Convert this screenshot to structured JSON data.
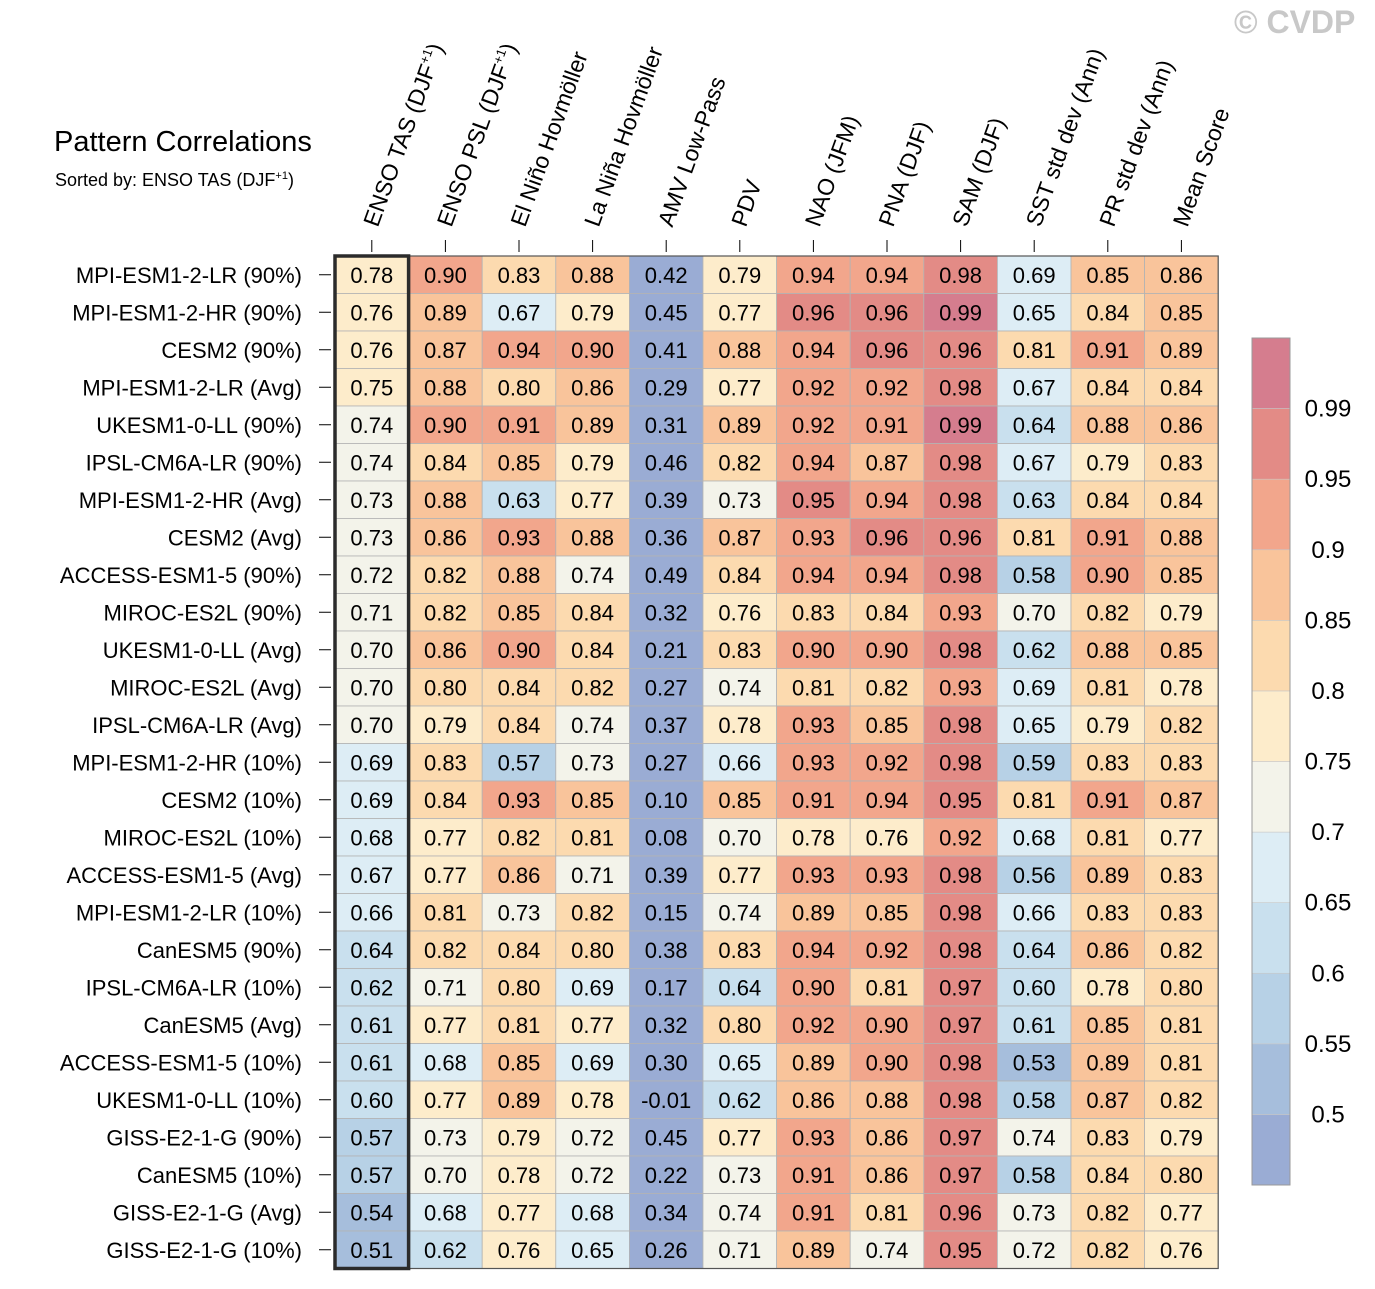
{
  "header": {
    "title": "Pattern Correlations",
    "subtitle_prefix": "Sorted by: ENSO TAS (DJF",
    "subtitle_sup": "+1",
    "subtitle_suffix": ")",
    "watermark": "© CVDP"
  },
  "chart_data": {
    "type": "heatmap",
    "columns": [
      {
        "label": "ENSO TAS (DJF",
        "sup": "+1",
        "suffix": ")"
      },
      {
        "label": "ENSO PSL (DJF",
        "sup": "+1",
        "suffix": ")"
      },
      {
        "label": "El Niño Hovmöller"
      },
      {
        "label": "La Niña Hovmöller"
      },
      {
        "label": "AMV Low-Pass"
      },
      {
        "label": "PDV"
      },
      {
        "label": "NAO (JFM)"
      },
      {
        "label": "PNA (DJF)"
      },
      {
        "label": "SAM (DJF)"
      },
      {
        "label": "SST std dev (Ann)"
      },
      {
        "label": "PR std dev (Ann)"
      },
      {
        "label": "Mean Score"
      }
    ],
    "sorted_column": 0,
    "rows": [
      {
        "label": "MPI-ESM1-2-LR (90%)",
        "values": [
          "0.78",
          "0.90",
          "0.83",
          "0.88",
          "0.42",
          "0.79",
          "0.94",
          "0.94",
          "0.98",
          "0.69",
          "0.85",
          "0.86"
        ]
      },
      {
        "label": "MPI-ESM1-2-HR (90%)",
        "values": [
          "0.76",
          "0.89",
          "0.67",
          "0.79",
          "0.45",
          "0.77",
          "0.96",
          "0.96",
          "0.99",
          "0.65",
          "0.84",
          "0.85"
        ]
      },
      {
        "label": "CESM2 (90%)",
        "values": [
          "0.76",
          "0.87",
          "0.94",
          "0.90",
          "0.41",
          "0.88",
          "0.94",
          "0.96",
          "0.96",
          "0.81",
          "0.91",
          "0.89"
        ]
      },
      {
        "label": "MPI-ESM1-2-LR (Avg)",
        "values": [
          "0.75",
          "0.88",
          "0.80",
          "0.86",
          "0.29",
          "0.77",
          "0.92",
          "0.92",
          "0.98",
          "0.67",
          "0.84",
          "0.84"
        ]
      },
      {
        "label": "UKESM1-0-LL (90%)",
        "values": [
          "0.74",
          "0.90",
          "0.91",
          "0.89",
          "0.31",
          "0.89",
          "0.92",
          "0.91",
          "0.99",
          "0.64",
          "0.88",
          "0.86"
        ]
      },
      {
        "label": "IPSL-CM6A-LR (90%)",
        "values": [
          "0.74",
          "0.84",
          "0.85",
          "0.79",
          "0.46",
          "0.82",
          "0.94",
          "0.87",
          "0.98",
          "0.67",
          "0.79",
          "0.83"
        ]
      },
      {
        "label": "MPI-ESM1-2-HR (Avg)",
        "values": [
          "0.73",
          "0.88",
          "0.63",
          "0.77",
          "0.39",
          "0.73",
          "0.95",
          "0.94",
          "0.98",
          "0.63",
          "0.84",
          "0.84"
        ]
      },
      {
        "label": "CESM2 (Avg)",
        "values": [
          "0.73",
          "0.86",
          "0.93",
          "0.88",
          "0.36",
          "0.87",
          "0.93",
          "0.96",
          "0.96",
          "0.81",
          "0.91",
          "0.88"
        ]
      },
      {
        "label": "ACCESS-ESM1-5 (90%)",
        "values": [
          "0.72",
          "0.82",
          "0.88",
          "0.74",
          "0.49",
          "0.84",
          "0.94",
          "0.94",
          "0.98",
          "0.58",
          "0.90",
          "0.85"
        ]
      },
      {
        "label": "MIROC-ES2L (90%)",
        "values": [
          "0.71",
          "0.82",
          "0.85",
          "0.84",
          "0.32",
          "0.76",
          "0.83",
          "0.84",
          "0.93",
          "0.70",
          "0.82",
          "0.79"
        ]
      },
      {
        "label": "UKESM1-0-LL (Avg)",
        "values": [
          "0.70",
          "0.86",
          "0.90",
          "0.84",
          "0.21",
          "0.83",
          "0.90",
          "0.90",
          "0.98",
          "0.62",
          "0.88",
          "0.85"
        ]
      },
      {
        "label": "MIROC-ES2L (Avg)",
        "values": [
          "0.70",
          "0.80",
          "0.84",
          "0.82",
          "0.27",
          "0.74",
          "0.81",
          "0.82",
          "0.93",
          "0.69",
          "0.81",
          "0.78"
        ]
      },
      {
        "label": "IPSL-CM6A-LR (Avg)",
        "values": [
          "0.70",
          "0.79",
          "0.84",
          "0.74",
          "0.37",
          "0.78",
          "0.93",
          "0.85",
          "0.98",
          "0.65",
          "0.79",
          "0.82"
        ]
      },
      {
        "label": "MPI-ESM1-2-HR (10%)",
        "values": [
          "0.69",
          "0.83",
          "0.57",
          "0.73",
          "0.27",
          "0.66",
          "0.93",
          "0.92",
          "0.98",
          "0.59",
          "0.83",
          "0.83"
        ]
      },
      {
        "label": "CESM2 (10%)",
        "values": [
          "0.69",
          "0.84",
          "0.93",
          "0.85",
          "0.10",
          "0.85",
          "0.91",
          "0.94",
          "0.95",
          "0.81",
          "0.91",
          "0.87"
        ]
      },
      {
        "label": "MIROC-ES2L (10%)",
        "values": [
          "0.68",
          "0.77",
          "0.82",
          "0.81",
          "0.08",
          "0.70",
          "0.78",
          "0.76",
          "0.92",
          "0.68",
          "0.81",
          "0.77"
        ]
      },
      {
        "label": "ACCESS-ESM1-5 (Avg)",
        "values": [
          "0.67",
          "0.77",
          "0.86",
          "0.71",
          "0.39",
          "0.77",
          "0.93",
          "0.93",
          "0.98",
          "0.56",
          "0.89",
          "0.83"
        ]
      },
      {
        "label": "MPI-ESM1-2-LR (10%)",
        "values": [
          "0.66",
          "0.81",
          "0.73",
          "0.82",
          "0.15",
          "0.74",
          "0.89",
          "0.85",
          "0.98",
          "0.66",
          "0.83",
          "0.83"
        ]
      },
      {
        "label": "CanESM5 (90%)",
        "values": [
          "0.64",
          "0.82",
          "0.84",
          "0.80",
          "0.38",
          "0.83",
          "0.94",
          "0.92",
          "0.98",
          "0.64",
          "0.86",
          "0.82"
        ]
      },
      {
        "label": "IPSL-CM6A-LR (10%)",
        "values": [
          "0.62",
          "0.71",
          "0.80",
          "0.69",
          "0.17",
          "0.64",
          "0.90",
          "0.81",
          "0.97",
          "0.60",
          "0.78",
          "0.80"
        ]
      },
      {
        "label": "CanESM5 (Avg)",
        "values": [
          "0.61",
          "0.77",
          "0.81",
          "0.77",
          "0.32",
          "0.80",
          "0.92",
          "0.90",
          "0.97",
          "0.61",
          "0.85",
          "0.81"
        ]
      },
      {
        "label": "ACCESS-ESM1-5 (10%)",
        "values": [
          "0.61",
          "0.68",
          "0.85",
          "0.69",
          "0.30",
          "0.65",
          "0.89",
          "0.90",
          "0.98",
          "0.53",
          "0.89",
          "0.81"
        ]
      },
      {
        "label": "UKESM1-0-LL (10%)",
        "values": [
          "0.60",
          "0.77",
          "0.89",
          "0.78",
          "-0.01",
          "0.62",
          "0.86",
          "0.88",
          "0.98",
          "0.58",
          "0.87",
          "0.82"
        ]
      },
      {
        "label": "GISS-E2-1-G (90%)",
        "values": [
          "0.57",
          "0.73",
          "0.79",
          "0.72",
          "0.45",
          "0.77",
          "0.93",
          "0.86",
          "0.97",
          "0.74",
          "0.83",
          "0.79"
        ]
      },
      {
        "label": "CanESM5 (10%)",
        "values": [
          "0.57",
          "0.70",
          "0.78",
          "0.72",
          "0.22",
          "0.73",
          "0.91",
          "0.86",
          "0.97",
          "0.58",
          "0.84",
          "0.80"
        ]
      },
      {
        "label": "GISS-E2-1-G (Avg)",
        "values": [
          "0.54",
          "0.68",
          "0.77",
          "0.68",
          "0.34",
          "0.74",
          "0.91",
          "0.81",
          "0.96",
          "0.73",
          "0.82",
          "0.77"
        ]
      },
      {
        "label": "GISS-E2-1-G (10%)",
        "values": [
          "0.51",
          "0.62",
          "0.76",
          "0.65",
          "0.26",
          "0.71",
          "0.89",
          "0.74",
          "0.95",
          "0.72",
          "0.82",
          "0.76"
        ]
      }
    ],
    "colorbar": {
      "levels": [
        0.5,
        0.55,
        0.6,
        0.65,
        0.7,
        0.75,
        0.8,
        0.85,
        0.9,
        0.95,
        0.99
      ],
      "labels": [
        "0.5",
        "0.55",
        "0.6",
        "0.65",
        "0.7",
        "0.75",
        "0.8",
        "0.85",
        "0.9",
        "0.95",
        "0.99"
      ],
      "colors": [
        "#9aacd4",
        "#a6bedc",
        "#b7d1e6",
        "#c9e0ee",
        "#ddedf5",
        "#f3f3ea",
        "#fdeccb",
        "#fcdaaf",
        "#f9c49b",
        "#f2a68c",
        "#e38b86",
        "#d57d8e"
      ]
    }
  }
}
